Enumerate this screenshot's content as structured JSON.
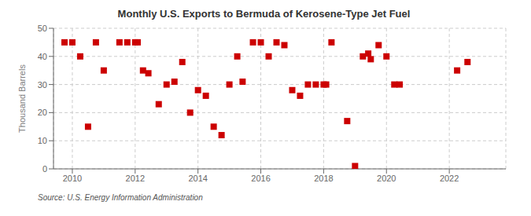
{
  "chart_data": {
    "type": "scatter",
    "title": "Monthly U.S. Exports to Bermuda of Kerosene-Type Jet Fuel",
    "ylabel": "Thousand Barrels",
    "annotations": [
      "Source: U.S. Energy Information Administration"
    ],
    "color": "#cc0000",
    "marker": "square",
    "grid": true,
    "xlim": [
      2009.4,
      2023.8
    ],
    "xticks": [
      2010,
      2012,
      2014,
      2016,
      2018,
      2020,
      2022
    ],
    "ylim": [
      0,
      50
    ],
    "yticks": [
      0,
      10,
      20,
      30,
      40,
      50
    ],
    "x": [
      2009.75,
      2010.0,
      2010.25,
      2010.5,
      2010.75,
      2011.0,
      2011.5,
      2011.75,
      2012.0,
      2012.08,
      2012.25,
      2012.42,
      2012.75,
      2013.0,
      2013.25,
      2013.5,
      2013.75,
      2014.0,
      2014.25,
      2014.5,
      2014.75,
      2015.0,
      2015.25,
      2015.42,
      2015.75,
      2016.0,
      2016.25,
      2016.5,
      2016.75,
      2017.0,
      2017.25,
      2017.5,
      2017.75,
      2018.0,
      2018.08,
      2018.25,
      2018.75,
      2019.0,
      2019.25,
      2019.42,
      2019.5,
      2019.75,
      2020.0,
      2020.25,
      2020.42,
      2022.25,
      2022.58
    ],
    "values": [
      45,
      45,
      40,
      15,
      45,
      35,
      45,
      45,
      45,
      45,
      35,
      34,
      23,
      30,
      31,
      38,
      20,
      28,
      26,
      15,
      12,
      30,
      40,
      31,
      45,
      45,
      40,
      45,
      44,
      28,
      26,
      30,
      30,
      30,
      30,
      45,
      17,
      1,
      40,
      41,
      39,
      44,
      40,
      30,
      30,
      35,
      38
    ]
  }
}
